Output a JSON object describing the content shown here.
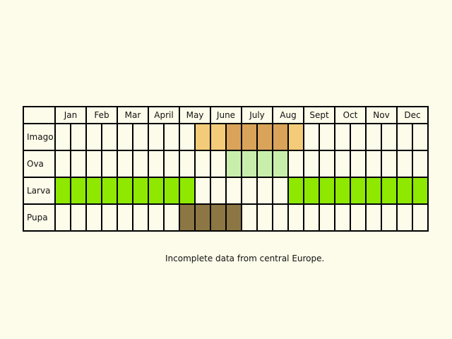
{
  "chart_data": {
    "type": "table",
    "months": [
      "Jan",
      "Feb",
      "Mar",
      "April",
      "May",
      "June",
      "July",
      "Aug",
      "Sept",
      "Oct",
      "Nov",
      "Dec"
    ],
    "rows": [
      {
        "label": "Imago",
        "cells": [
          "",
          "",
          "",
          "",
          "",
          "",
          "",
          "",
          "",
          "c1",
          "c1",
          "c2",
          "c2",
          "c2",
          "c2",
          "c1",
          "",
          "",
          "",
          "",
          "",
          "",
          "",
          ""
        ]
      },
      {
        "label": "Ova",
        "cells": [
          "",
          "",
          "",
          "",
          "",
          "",
          "",
          "",
          "",
          "",
          "",
          "c3",
          "c3",
          "c3",
          "c3",
          "",
          "",
          "",
          "",
          "",
          "",
          "",
          "",
          ""
        ]
      },
      {
        "label": "Larva",
        "cells": [
          "c4",
          "c4",
          "c4",
          "c4",
          "c4",
          "c4",
          "c4",
          "c4",
          "c4",
          "",
          "",
          "",
          "",
          "",
          "",
          "c4",
          "c4",
          "c4",
          "c4",
          "c4",
          "c4",
          "c4",
          "c4",
          "c4"
        ]
      },
      {
        "label": "Pupa",
        "cells": [
          "",
          "",
          "",
          "",
          "",
          "",
          "",
          "",
          "c5",
          "c5",
          "c5",
          "c5",
          "",
          "",
          "",
          "",
          "",
          "",
          "",
          "",
          "",
          "",
          "",
          ""
        ]
      }
    ],
    "colors": {
      "c1": "#f3cb79",
      "c2": "#d9a35a",
      "c3": "#c8eeac",
      "c4": "#8ee800",
      "c5": "#8c7744"
    }
  },
  "caption": "Incomplete data from central Europe."
}
